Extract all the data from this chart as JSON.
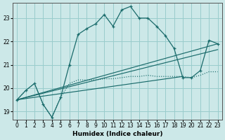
{
  "xlabel": "Humidex (Indice chaleur)",
  "background_color": "#cce8e8",
  "grid_color": "#99cccc",
  "line_color": "#1a6b6b",
  "xlim": [
    -0.5,
    23.5
  ],
  "ylim": [
    18.65,
    23.65
  ],
  "yticks": [
    19,
    20,
    21,
    22,
    23
  ],
  "xticks": [
    0,
    1,
    2,
    3,
    4,
    5,
    6,
    7,
    8,
    9,
    10,
    11,
    12,
    13,
    14,
    15,
    16,
    17,
    18,
    19,
    20,
    21,
    22,
    23
  ],
  "line1_x": [
    0,
    1,
    2,
    3,
    4,
    5,
    6,
    7,
    8,
    9,
    10,
    11,
    12,
    13,
    14,
    15,
    16,
    17,
    18,
    19,
    20,
    21,
    22,
    23
  ],
  "line1_y": [
    19.5,
    19.9,
    20.2,
    19.3,
    18.75,
    19.6,
    21.0,
    22.3,
    22.55,
    22.75,
    23.15,
    22.65,
    23.35,
    23.5,
    23.0,
    23.0,
    22.65,
    22.25,
    21.7,
    20.45,
    20.45,
    20.75,
    22.05,
    21.9
  ],
  "line2_x": [
    0,
    1,
    2,
    3,
    4,
    5,
    6,
    7,
    8,
    9,
    10,
    11,
    12,
    13,
    14,
    15,
    16,
    17,
    18,
    19,
    20,
    21,
    22,
    23
  ],
  "line2_y": [
    19.5,
    19.9,
    20.2,
    19.3,
    18.75,
    19.6,
    20.2,
    20.35,
    20.35,
    20.35,
    20.4,
    20.4,
    20.45,
    20.5,
    20.5,
    20.55,
    20.5,
    20.5,
    20.5,
    20.5,
    20.45,
    20.55,
    20.7,
    20.7
  ],
  "trend1_x": [
    0,
    19
  ],
  "trend1_y": [
    19.5,
    20.5
  ],
  "trend2_x": [
    0,
    23
  ],
  "trend2_y": [
    19.5,
    21.9
  ],
  "trend3_x": [
    0,
    23
  ],
  "trend3_y": [
    19.5,
    21.65
  ]
}
